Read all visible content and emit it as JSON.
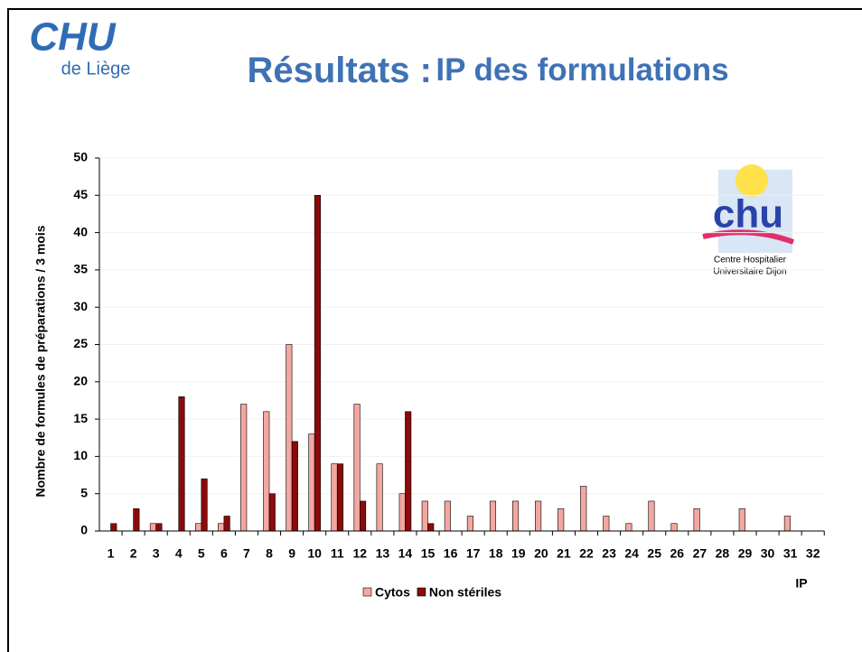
{
  "header": {
    "title_main": "Résultats :",
    "title_rest": "IP des formulations"
  },
  "logo_left": {
    "mark": "CHU",
    "city": "de Liège"
  },
  "logo_right": {
    "mark": "chu",
    "line1": "Centre Hospitalier",
    "line2": "Universitaire Dijon"
  },
  "chart_data": {
    "type": "bar",
    "ylabel": "Nombre de formules de préparations / 3 mois",
    "xlabel": "IP",
    "categories": [
      "1",
      "2",
      "3",
      "4",
      "5",
      "6",
      "7",
      "8",
      "9",
      "10",
      "11",
      "12",
      "13",
      "14",
      "15",
      "16",
      "17",
      "18",
      "19",
      "20",
      "21",
      "22",
      "23",
      "24",
      "25",
      "26",
      "27",
      "28",
      "29",
      "30",
      "31",
      "32"
    ],
    "series": [
      {
        "name": "Cytos",
        "color": "#f4a6a0",
        "values": [
          0,
          0,
          1,
          0,
          1,
          1,
          17,
          16,
          25,
          13,
          9,
          17,
          9,
          5,
          4,
          4,
          2,
          4,
          4,
          4,
          3,
          6,
          2,
          1,
          4,
          1,
          3,
          0,
          3,
          0,
          2,
          0
        ]
      },
      {
        "name": "Non stériles",
        "color": "#8b0a0a",
        "values": [
          1,
          3,
          1,
          18,
          7,
          2,
          0,
          5,
          12,
          45,
          9,
          4,
          0,
          16,
          1,
          0,
          0,
          0,
          0,
          0,
          0,
          0,
          0,
          0,
          0,
          0,
          0,
          0,
          0,
          0,
          0,
          0
        ]
      }
    ],
    "ylim": [
      0,
      50
    ],
    "yticks": [
      0,
      5,
      10,
      15,
      20,
      25,
      30,
      35,
      40,
      45,
      50
    ],
    "grid": true
  }
}
